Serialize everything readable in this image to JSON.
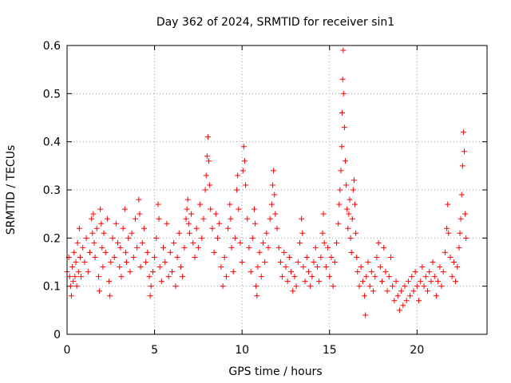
{
  "chart_data": {
    "type": "scatter",
    "title": "Day 362 of 2024, SRMTID for receiver sin1",
    "xlabel": "GPS time / hours",
    "ylabel": "SRMTID / TECUs",
    "xlim": [
      0,
      24
    ],
    "ylim": [
      0,
      0.6
    ],
    "xticks": [
      0,
      5,
      10,
      15,
      20
    ],
    "xtick_labels": [
      "0",
      "5",
      "10",
      "15",
      "20"
    ],
    "yticks": [
      0,
      0.1,
      0.2,
      0.3,
      0.4,
      0.5,
      0.6
    ],
    "ytick_labels": [
      "0",
      "0.1",
      "0.2",
      "0.3",
      "0.4",
      "0.5",
      "0.6"
    ],
    "grid": true,
    "marker": "+",
    "color": "#ff0000",
    "series": [
      {
        "name": "sin1",
        "points": [
          [
            0.0,
            0.13
          ],
          [
            0.1,
            0.16
          ],
          [
            0.15,
            0.12
          ],
          [
            0.2,
            0.1
          ],
          [
            0.25,
            0.08
          ],
          [
            0.3,
            0.14
          ],
          [
            0.35,
            0.11
          ],
          [
            0.4,
            0.17
          ],
          [
            0.45,
            0.12
          ],
          [
            0.5,
            0.15
          ],
          [
            0.55,
            0.1
          ],
          [
            0.6,
            0.19
          ],
          [
            0.65,
            0.13
          ],
          [
            0.7,
            0.22
          ],
          [
            0.75,
            0.16
          ],
          [
            0.8,
            0.12
          ],
          [
            0.9,
            0.18
          ],
          [
            1.0,
            0.15
          ],
          [
            1.1,
            0.2
          ],
          [
            1.2,
            0.13
          ],
          [
            1.3,
            0.17
          ],
          [
            1.4,
            0.24
          ],
          [
            1.45,
            0.21
          ],
          [
            1.5,
            0.25
          ],
          [
            1.55,
            0.19
          ],
          [
            1.6,
            0.16
          ],
          [
            1.7,
            0.22
          ],
          [
            1.8,
            0.12
          ],
          [
            1.85,
            0.09
          ],
          [
            1.9,
            0.26
          ],
          [
            1.95,
            0.23
          ],
          [
            2.0,
            0.18
          ],
          [
            2.05,
            0.14
          ],
          [
            2.1,
            0.21
          ],
          [
            2.2,
            0.17
          ],
          [
            2.3,
            0.24
          ],
          [
            2.4,
            0.11
          ],
          [
            2.45,
            0.08
          ],
          [
            2.5,
            0.15
          ],
          [
            2.6,
            0.2
          ],
          [
            2.7,
            0.16
          ],
          [
            2.8,
            0.23
          ],
          [
            2.9,
            0.19
          ],
          [
            3.0,
            0.14
          ],
          [
            3.05,
            0.18
          ],
          [
            3.1,
            0.12
          ],
          [
            3.2,
            0.22
          ],
          [
            3.3,
            0.26
          ],
          [
            3.35,
            0.17
          ],
          [
            3.4,
            0.15
          ],
          [
            3.5,
            0.2
          ],
          [
            3.6,
            0.13
          ],
          [
            3.7,
            0.21
          ],
          [
            3.8,
            0.16
          ],
          [
            3.9,
            0.24
          ],
          [
            4.0,
            0.18
          ],
          [
            4.1,
            0.28
          ],
          [
            4.15,
            0.25
          ],
          [
            4.2,
            0.14
          ],
          [
            4.3,
            0.19
          ],
          [
            4.4,
            0.22
          ],
          [
            4.5,
            0.15
          ],
          [
            4.6,
            0.17
          ],
          [
            4.7,
            0.12
          ],
          [
            4.75,
            0.08
          ],
          [
            4.8,
            0.1
          ],
          [
            4.9,
            0.13
          ],
          [
            5.0,
            0.16
          ],
          [
            5.1,
            0.2
          ],
          [
            5.2,
            0.27
          ],
          [
            5.25,
            0.24
          ],
          [
            5.3,
            0.14
          ],
          [
            5.4,
            0.11
          ],
          [
            5.5,
            0.18
          ],
          [
            5.6,
            0.15
          ],
          [
            5.7,
            0.23
          ],
          [
            5.8,
            0.12
          ],
          [
            5.9,
            0.17
          ],
          [
            6.0,
            0.13
          ],
          [
            6.1,
            0.19
          ],
          [
            6.2,
            0.1
          ],
          [
            6.3,
            0.16
          ],
          [
            6.4,
            0.21
          ],
          [
            6.5,
            0.14
          ],
          [
            6.6,
            0.12
          ],
          [
            6.7,
            0.18
          ],
          [
            6.8,
            0.24
          ],
          [
            6.85,
            0.26
          ],
          [
            6.9,
            0.28
          ],
          [
            6.95,
            0.23
          ],
          [
            7.0,
            0.21
          ],
          [
            7.1,
            0.25
          ],
          [
            7.2,
            0.19
          ],
          [
            7.3,
            0.16
          ],
          [
            7.4,
            0.22
          ],
          [
            7.5,
            0.18
          ],
          [
            7.6,
            0.27
          ],
          [
            7.7,
            0.2
          ],
          [
            7.8,
            0.24
          ],
          [
            7.9,
            0.3
          ],
          [
            7.95,
            0.33
          ],
          [
            8.0,
            0.37
          ],
          [
            8.05,
            0.41
          ],
          [
            8.1,
            0.36
          ],
          [
            8.15,
            0.31
          ],
          [
            8.2,
            0.26
          ],
          [
            8.3,
            0.22
          ],
          [
            8.4,
            0.17
          ],
          [
            8.5,
            0.25
          ],
          [
            8.6,
            0.2
          ],
          [
            8.7,
            0.23
          ],
          [
            8.8,
            0.14
          ],
          [
            8.9,
            0.1
          ],
          [
            9.0,
            0.16
          ],
          [
            9.1,
            0.12
          ],
          [
            9.2,
            0.22
          ],
          [
            9.3,
            0.27
          ],
          [
            9.35,
            0.24
          ],
          [
            9.4,
            0.18
          ],
          [
            9.5,
            0.13
          ],
          [
            9.6,
            0.2
          ],
          [
            9.7,
            0.3
          ],
          [
            9.75,
            0.33
          ],
          [
            9.8,
            0.26
          ],
          [
            9.9,
            0.19
          ],
          [
            10.0,
            0.15
          ],
          [
            10.05,
            0.34
          ],
          [
            10.1,
            0.39
          ],
          [
            10.15,
            0.36
          ],
          [
            10.2,
            0.31
          ],
          [
            10.3,
            0.24
          ],
          [
            10.4,
            0.18
          ],
          [
            10.5,
            0.13
          ],
          [
            10.6,
            0.2
          ],
          [
            10.7,
            0.26
          ],
          [
            10.75,
            0.23
          ],
          [
            10.8,
            0.1
          ],
          [
            10.85,
            0.08
          ],
          [
            10.9,
            0.14
          ],
          [
            11.0,
            0.17
          ],
          [
            11.1,
            0.12
          ],
          [
            11.2,
            0.19
          ],
          [
            11.3,
            0.15
          ],
          [
            11.4,
            0.21
          ],
          [
            11.5,
            0.18
          ],
          [
            11.6,
            0.24
          ],
          [
            11.7,
            0.27
          ],
          [
            11.75,
            0.31
          ],
          [
            11.8,
            0.34
          ],
          [
            11.85,
            0.29
          ],
          [
            11.9,
            0.25
          ],
          [
            12.0,
            0.22
          ],
          [
            12.1,
            0.18
          ],
          [
            12.2,
            0.15
          ],
          [
            12.3,
            0.12
          ],
          [
            12.4,
            0.17
          ],
          [
            12.5,
            0.14
          ],
          [
            12.6,
            0.11
          ],
          [
            12.7,
            0.16
          ],
          [
            12.8,
            0.13
          ],
          [
            12.9,
            0.09
          ],
          [
            13.0,
            0.12
          ],
          [
            13.1,
            0.1
          ],
          [
            13.2,
            0.15
          ],
          [
            13.3,
            0.19
          ],
          [
            13.4,
            0.24
          ],
          [
            13.45,
            0.21
          ],
          [
            13.5,
            0.14
          ],
          [
            13.6,
            0.11
          ],
          [
            13.7,
            0.16
          ],
          [
            13.8,
            0.13
          ],
          [
            13.9,
            0.1
          ],
          [
            14.0,
            0.12
          ],
          [
            14.1,
            0.15
          ],
          [
            14.2,
            0.18
          ],
          [
            14.3,
            0.14
          ],
          [
            14.4,
            0.11
          ],
          [
            14.5,
            0.16
          ],
          [
            14.6,
            0.21
          ],
          [
            14.65,
            0.25
          ],
          [
            14.7,
            0.19
          ],
          [
            14.8,
            0.14
          ],
          [
            14.9,
            0.18
          ],
          [
            15.0,
            0.12
          ],
          [
            15.1,
            0.16
          ],
          [
            15.2,
            0.1
          ],
          [
            15.3,
            0.15
          ],
          [
            15.4,
            0.19
          ],
          [
            15.5,
            0.23
          ],
          [
            15.55,
            0.27
          ],
          [
            15.6,
            0.3
          ],
          [
            15.65,
            0.34
          ],
          [
            15.7,
            0.39
          ],
          [
            15.72,
            0.46
          ],
          [
            15.75,
            0.53
          ],
          [
            15.78,
            0.59
          ],
          [
            15.8,
            0.5
          ],
          [
            15.85,
            0.43
          ],
          [
            15.9,
            0.36
          ],
          [
            15.95,
            0.31
          ],
          [
            16.0,
            0.26
          ],
          [
            16.05,
            0.22
          ],
          [
            16.1,
            0.25
          ],
          [
            16.15,
            0.28
          ],
          [
            16.2,
            0.2
          ],
          [
            16.25,
            0.17
          ],
          [
            16.3,
            0.24
          ],
          [
            16.35,
            0.3
          ],
          [
            16.4,
            0.32
          ],
          [
            16.45,
            0.27
          ],
          [
            16.5,
            0.21
          ],
          [
            16.55,
            0.16
          ],
          [
            16.6,
            0.13
          ],
          [
            16.7,
            0.1
          ],
          [
            16.8,
            0.14
          ],
          [
            16.9,
            0.11
          ],
          [
            17.0,
            0.08
          ],
          [
            17.05,
            0.04
          ],
          [
            17.1,
            0.12
          ],
          [
            17.2,
            0.15
          ],
          [
            17.3,
            0.1
          ],
          [
            17.4,
            0.13
          ],
          [
            17.5,
            0.09
          ],
          [
            17.6,
            0.12
          ],
          [
            17.7,
            0.16
          ],
          [
            17.8,
            0.19
          ],
          [
            17.9,
            0.14
          ],
          [
            18.0,
            0.11
          ],
          [
            18.1,
            0.18
          ],
          [
            18.2,
            0.13
          ],
          [
            18.3,
            0.09
          ],
          [
            18.4,
            0.12
          ],
          [
            18.5,
            0.16
          ],
          [
            18.6,
            0.1
          ],
          [
            18.7,
            0.07
          ],
          [
            18.8,
            0.11
          ],
          [
            18.9,
            0.08
          ],
          [
            19.0,
            0.05
          ],
          [
            19.1,
            0.09
          ],
          [
            19.2,
            0.06
          ],
          [
            19.3,
            0.1
          ],
          [
            19.4,
            0.07
          ],
          [
            19.5,
            0.11
          ],
          [
            19.6,
            0.08
          ],
          [
            19.7,
            0.12
          ],
          [
            19.8,
            0.09
          ],
          [
            19.9,
            0.13
          ],
          [
            20.0,
            0.1
          ],
          [
            20.1,
            0.07
          ],
          [
            20.2,
            0.11
          ],
          [
            20.3,
            0.14
          ],
          [
            20.4,
            0.1
          ],
          [
            20.5,
            0.12
          ],
          [
            20.6,
            0.09
          ],
          [
            20.7,
            0.13
          ],
          [
            20.8,
            0.11
          ],
          [
            20.9,
            0.15
          ],
          [
            21.0,
            0.12
          ],
          [
            21.1,
            0.08
          ],
          [
            21.2,
            0.11
          ],
          [
            21.3,
            0.14
          ],
          [
            21.4,
            0.1
          ],
          [
            21.5,
            0.13
          ],
          [
            21.6,
            0.17
          ],
          [
            21.7,
            0.22
          ],
          [
            21.75,
            0.27
          ],
          [
            21.8,
            0.21
          ],
          [
            21.9,
            0.16
          ],
          [
            22.0,
            0.12
          ],
          [
            22.1,
            0.15
          ],
          [
            22.2,
            0.11
          ],
          [
            22.3,
            0.14
          ],
          [
            22.4,
            0.18
          ],
          [
            22.45,
            0.21
          ],
          [
            22.5,
            0.24
          ],
          [
            22.55,
            0.29
          ],
          [
            22.6,
            0.35
          ],
          [
            22.65,
            0.42
          ],
          [
            22.7,
            0.38
          ],
          [
            22.75,
            0.25
          ],
          [
            22.8,
            0.2
          ]
        ]
      }
    ]
  }
}
